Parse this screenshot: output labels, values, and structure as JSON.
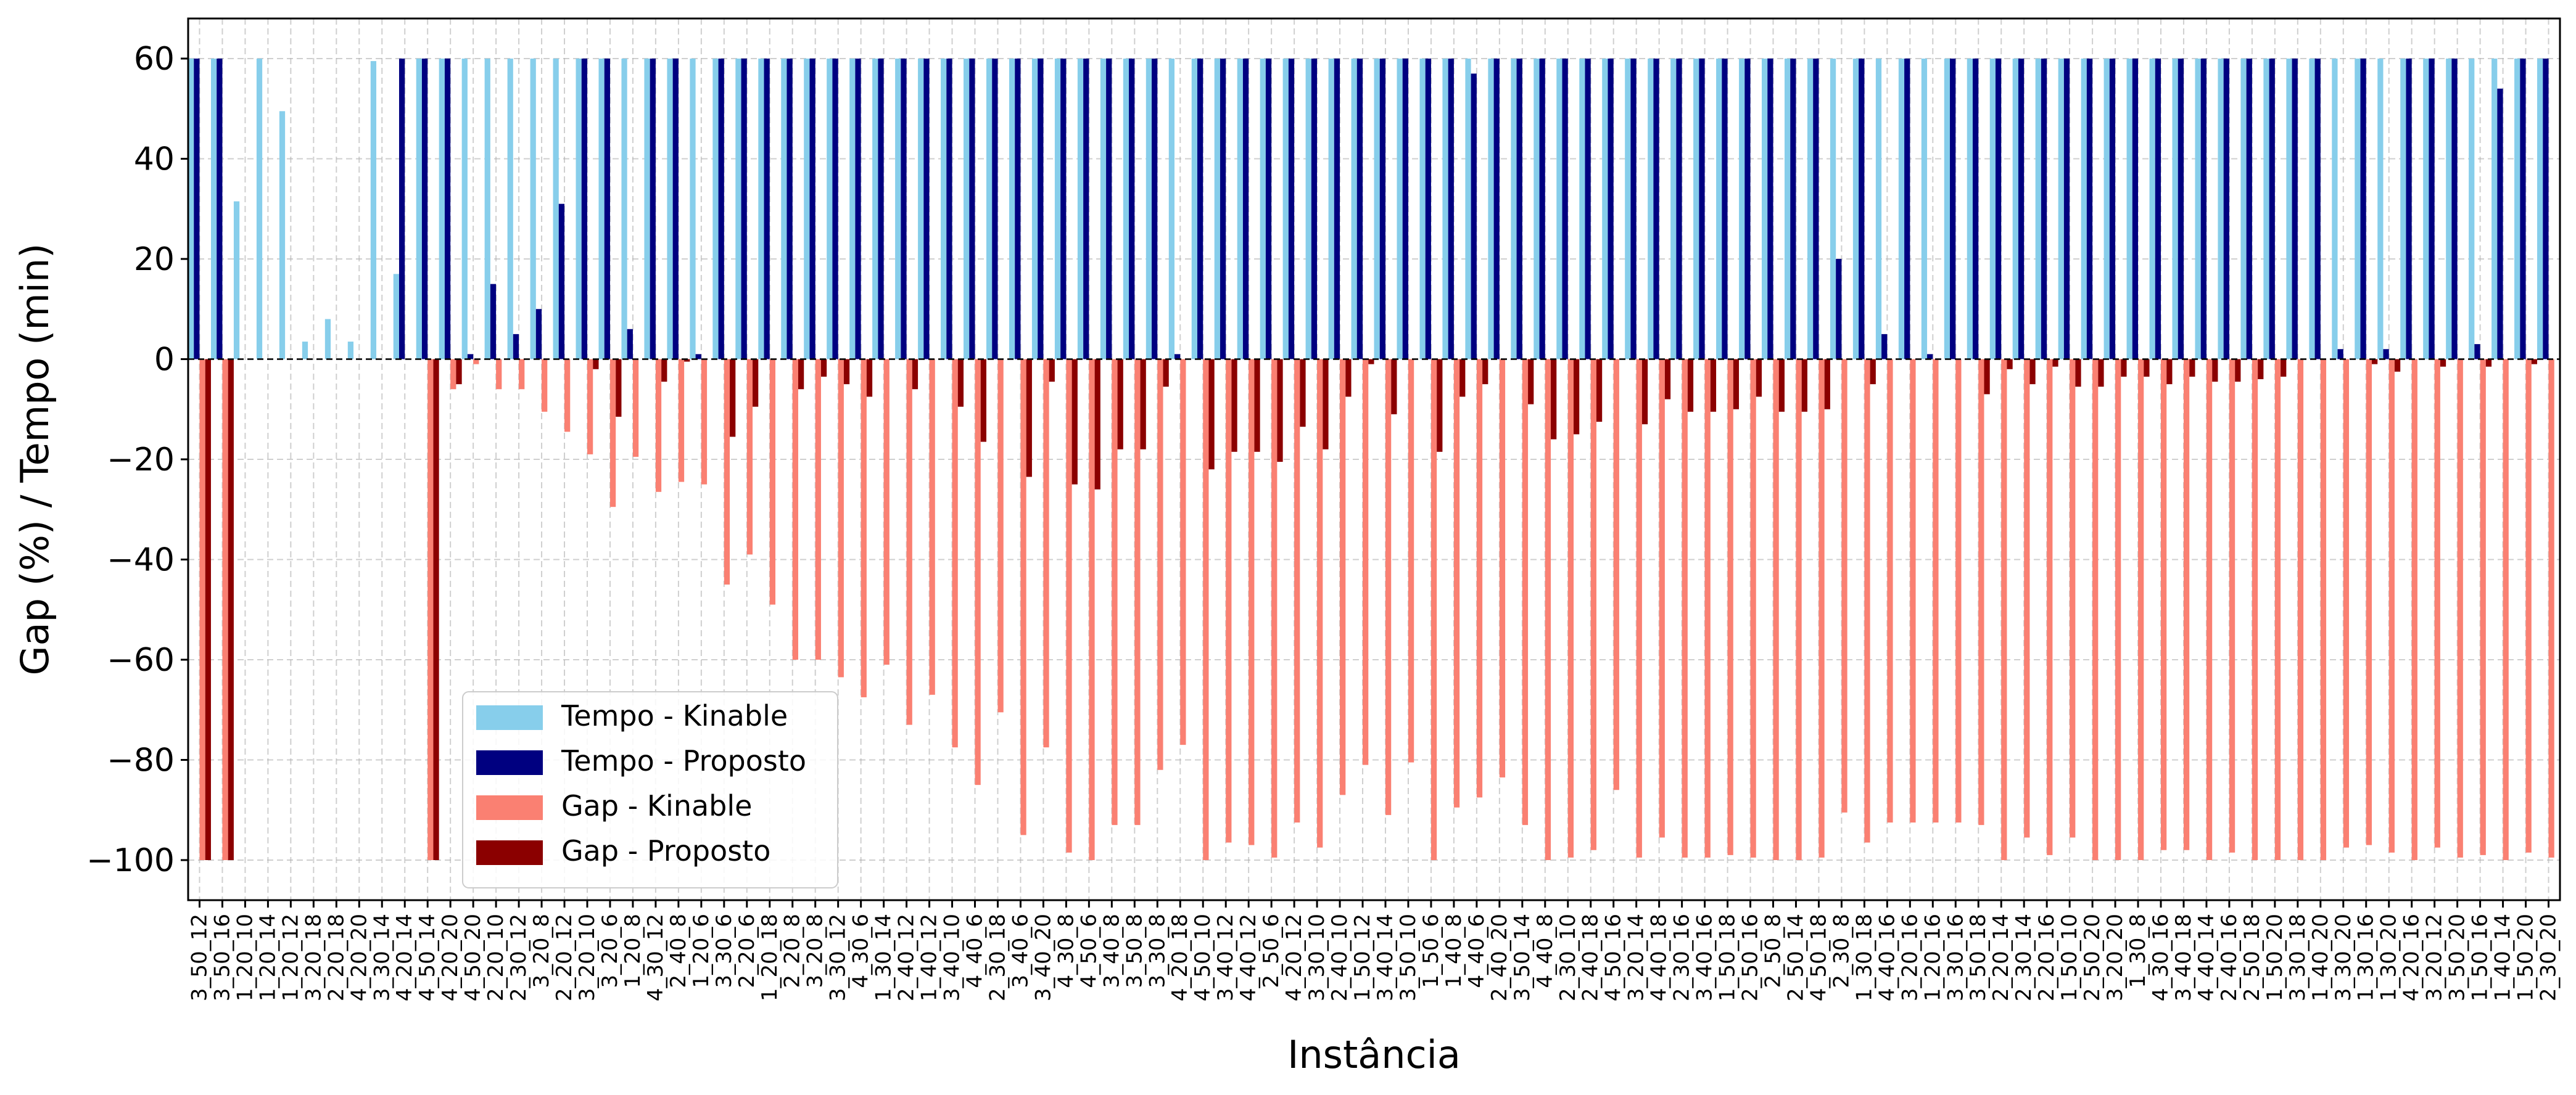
{
  "chart_data": {
    "type": "bar",
    "title": "",
    "xlabel": "Instância",
    "ylabel": "Gap (%) / Tempo (min)",
    "ylim": [
      -108,
      68
    ],
    "yticks": [
      -100,
      -80,
      -60,
      -40,
      -20,
      0,
      20,
      40,
      60
    ],
    "ytick_labels": [
      "−100",
      "−80",
      "−60",
      "−40",
      "−20",
      "0",
      "20",
      "40",
      "60"
    ],
    "grid": true,
    "legend_position": "lower-left",
    "categories": [
      "3_50_12",
      "3_50_16",
      "1_20_10",
      "1_20_14",
      "1_20_12",
      "3_20_18",
      "2_20_18",
      "4_20_20",
      "3_30_14",
      "4_20_14",
      "4_50_14",
      "4_20_20",
      "4_50_20",
      "2_20_10",
      "2_30_12",
      "3_20_8",
      "2_20_12",
      "3_20_10",
      "3_20_6",
      "1_20_8",
      "4_30_12",
      "2_40_8",
      "1_20_6",
      "3_30_6",
      "2_20_6",
      "1_20_18",
      "2_20_8",
      "3_20_8",
      "3_30_12",
      "4_30_6",
      "1_30_14",
      "2_40_12",
      "1_40_12",
      "3_40_10",
      "4_40_6",
      "2_30_18",
      "3_40_6",
      "3_40_20",
      "4_30_8",
      "4_50_6",
      "3_40_8",
      "3_50_8",
      "3_30_8",
      "4_20_18",
      "4_50_10",
      "3_40_12",
      "4_40_12",
      "2_50_6",
      "4_20_12",
      "3_30_10",
      "2_40_10",
      "1_50_12",
      "3_40_14",
      "3_50_10",
      "1_50_6",
      "1_40_8",
      "4_40_6",
      "2_40_20",
      "3_50_14",
      "4_40_8",
      "2_30_10",
      "2_40_18",
      "4_50_16",
      "3_20_14",
      "4_40_18",
      "2_30_16",
      "3_40_16",
      "1_50_18",
      "2_50_16",
      "2_50_8",
      "2_50_14",
      "4_50_18",
      "2_30_8",
      "1_30_18",
      "4_40_16",
      "3_20_16",
      "1_20_16",
      "3_30_16",
      "3_50_18",
      "2_20_14",
      "2_30_14",
      "2_20_16",
      "1_50_10",
      "2_50_20",
      "3_20_20",
      "1_30_8",
      "4_30_16",
      "3_40_18",
      "4_40_14",
      "2_40_16",
      "2_50_18",
      "1_50_20",
      "3_30_18",
      "1_40_20",
      "3_30_20",
      "1_30_16",
      "1_30_20",
      "4_20_16",
      "3_20_12",
      "3_50_20",
      "1_50_16",
      "1_40_14",
      "1_50_20",
      "2_30_20"
    ],
    "series": [
      {
        "name": "Tempo - Kinable",
        "color": "#87CEEB",
        "values": [
          60,
          60,
          31.5,
          60,
          49.5,
          3.5,
          8,
          3.5,
          59.5,
          17,
          60,
          60,
          60,
          60,
          60,
          60,
          60,
          60,
          60,
          60,
          60,
          60,
          60,
          60,
          60,
          60,
          60,
          60,
          60,
          60,
          60,
          60,
          60,
          60,
          60,
          60,
          60,
          60,
          60,
          60,
          60,
          60,
          60,
          60,
          60,
          60,
          60,
          60,
          60,
          60,
          60,
          60,
          60,
          60,
          60,
          60,
          60,
          60,
          60,
          60,
          60,
          60,
          60,
          60,
          60,
          60,
          60,
          60,
          60,
          60,
          60,
          60,
          60,
          60,
          60,
          60,
          60,
          60,
          60,
          60,
          60,
          60,
          60,
          60,
          60,
          60,
          60,
          60,
          60,
          60,
          60,
          60,
          60,
          60,
          60,
          60,
          60,
          60,
          60,
          60,
          60,
          60,
          60,
          60
        ]
      },
      {
        "name": "Tempo - Proposto",
        "color": "#000080",
        "values": [
          60,
          60,
          0,
          0,
          0,
          0,
          0,
          0,
          0,
          60,
          60,
          60,
          1,
          15,
          5,
          10,
          31,
          60,
          60,
          6,
          60,
          60,
          1,
          60,
          60,
          60,
          60,
          60,
          60,
          60,
          60,
          60,
          60,
          60,
          60,
          60,
          60,
          60,
          60,
          60,
          60,
          60,
          60,
          1,
          60,
          60,
          60,
          60,
          60,
          60,
          60,
          60,
          60,
          60,
          60,
          60,
          57,
          60,
          60,
          60,
          60,
          60,
          60,
          60,
          60,
          60,
          60,
          60,
          60,
          60,
          60,
          60,
          20,
          60,
          5,
          60,
          1,
          60,
          60,
          60,
          60,
          60,
          60,
          60,
          60,
          60,
          60,
          60,
          60,
          60,
          60,
          60,
          60,
          60,
          2,
          60,
          2,
          60,
          60,
          60,
          3,
          54,
          60,
          60
        ]
      },
      {
        "name": "Gap - Kinable",
        "color": "#FA8072",
        "values": [
          -100,
          -100,
          0,
          0,
          0,
          0,
          0,
          0,
          0,
          0,
          -100,
          -6,
          -1,
          -6,
          -6,
          -10.5,
          -14.5,
          -19,
          -29.5,
          -19.5,
          -26.5,
          -24.5,
          -25,
          -45,
          -39,
          -49,
          -60,
          -60,
          -63.5,
          -67.5,
          -61,
          -73,
          -67,
          -77.5,
          -85,
          -70.5,
          -95,
          -77.5,
          -98.5,
          -100,
          -93,
          -93,
          -82,
          -77,
          -100,
          -96.5,
          -97,
          -99.5,
          -92.5,
          -97.5,
          -87,
          -81,
          -91,
          -80.5,
          -100,
          -89.5,
          -87.5,
          -83.5,
          -93,
          -100,
          -99.5,
          -98,
          -86,
          -99.5,
          -95.5,
          -99.5,
          -99.5,
          -99,
          -99.5,
          -100,
          -100,
          -99.5,
          -90.5,
          -96.5,
          -92.5,
          -92.5,
          -92.5,
          -92.5,
          -93,
          -100,
          -95.5,
          -99,
          -95.5,
          -100,
          -100,
          -100,
          -98,
          -98,
          -100,
          -98.5,
          -100,
          -100,
          -100,
          -100,
          -97.5,
          -97,
          -98.5,
          -100,
          -97.5,
          -99.5,
          -99,
          -100,
          -98.5,
          -99.5
        ]
      },
      {
        "name": "Gap - Proposto",
        "color": "#8B0000",
        "values": [
          -100,
          -100,
          0,
          0,
          0,
          0,
          0,
          0,
          0,
          0,
          -100,
          -5,
          0,
          0,
          0,
          0,
          0,
          -2,
          -11.5,
          0,
          -4.5,
          -0.5,
          0,
          -15.5,
          -9.5,
          0,
          -6,
          -3.5,
          -5,
          -7.5,
          0,
          -6,
          0,
          -9.5,
          -16.5,
          0,
          -23.5,
          -4.5,
          -25,
          -26,
          -18,
          -18,
          -5.5,
          0,
          -22,
          -18.5,
          -18.5,
          -20.5,
          -13.5,
          -18,
          -7.5,
          -1,
          -11,
          0,
          -18.5,
          -7.5,
          -5,
          0,
          -9,
          -16,
          -15,
          -12.5,
          0,
          -13,
          -8,
          -10.5,
          -10.5,
          -10,
          -7.5,
          -10.5,
          -10.5,
          -10,
          0,
          -5,
          0,
          0,
          0,
          0,
          -7,
          -2,
          -5,
          -1.5,
          -5.5,
          -5.5,
          -3.5,
          -3.5,
          -5,
          -3.5,
          -4.5,
          -4.5,
          -4,
          -3.5,
          0,
          0,
          0,
          -1,
          -2.5,
          0,
          -1.5,
          0,
          -1.5,
          0,
          -1,
          0
        ]
      }
    ]
  }
}
